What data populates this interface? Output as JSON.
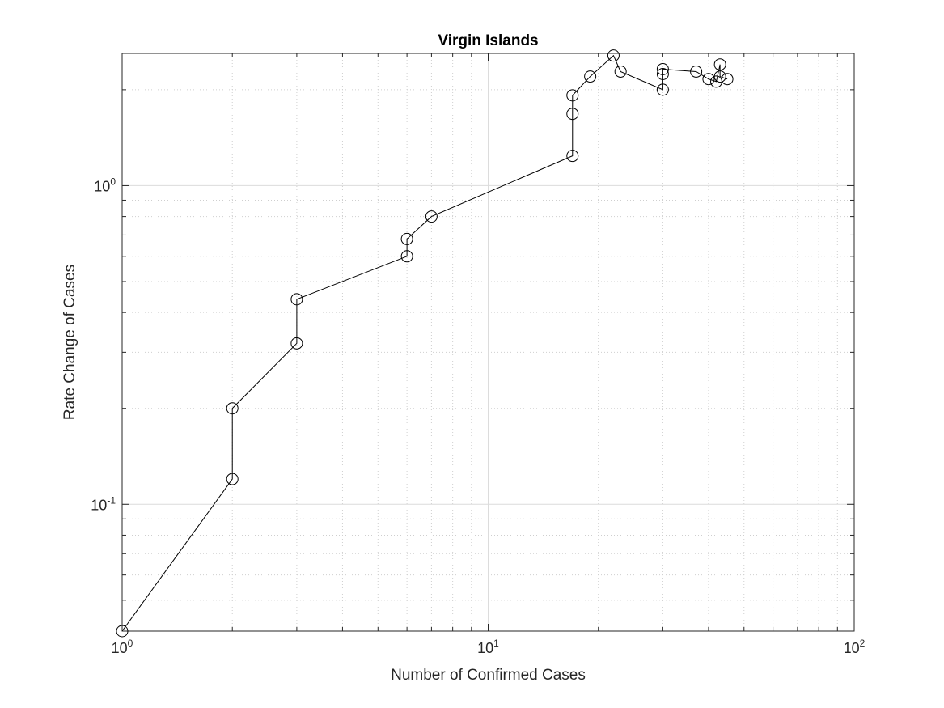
{
  "chart_data": {
    "type": "scatter",
    "title": "Virgin Islands",
    "xlabel": "Number of Confirmed Cases",
    "ylabel": "Rate Change of Cases",
    "x_scale": "log",
    "y_scale": "log",
    "xlim": [
      1,
      100
    ],
    "ylim": [
      0.04,
      2.6
    ],
    "grid": true,
    "line_color": "#000000",
    "marker": "open-circle",
    "x_ticks": [
      {
        "value": 1,
        "base": "10",
        "exp": "0"
      },
      {
        "value": 10,
        "base": "10",
        "exp": "1"
      },
      {
        "value": 100,
        "base": "10",
        "exp": "2"
      }
    ],
    "y_ticks": [
      {
        "value": 0.1,
        "base": "10",
        "exp": "-1"
      },
      {
        "value": 1,
        "base": "10",
        "exp": "0"
      }
    ],
    "series": [
      {
        "x": [
          1,
          2,
          2,
          3,
          3,
          6,
          6,
          7,
          17,
          17,
          17,
          19,
          22,
          23,
          30,
          30,
          30,
          37,
          40,
          42,
          43,
          43,
          45
        ],
        "y": [
          0.04,
          0.12,
          0.2,
          0.32,
          0.44,
          0.6,
          0.68,
          0.8,
          1.24,
          1.68,
          1.92,
          2.2,
          2.56,
          2.28,
          2.0,
          2.24,
          2.32,
          2.28,
          2.16,
          2.12,
          2.4,
          2.2,
          2.16
        ]
      }
    ]
  }
}
